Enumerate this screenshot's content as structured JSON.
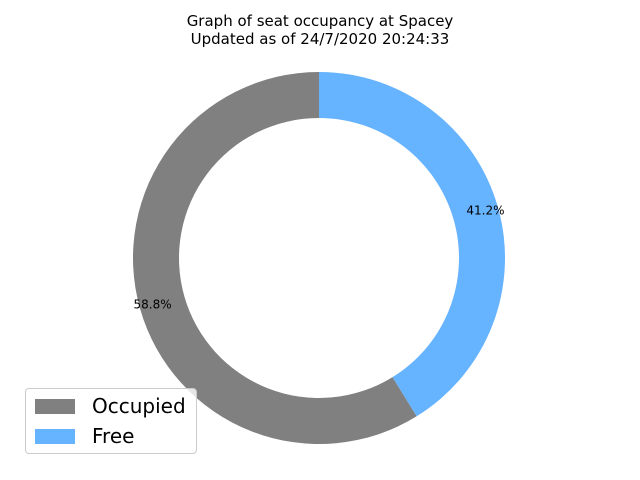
{
  "chart_data": {
    "type": "pie",
    "style": "donut",
    "title": "Graph of seat occupancy at Spacey\nUpdated as of 24/7/2020 20:24:33",
    "title_lines": [
      "Graph of seat occupancy at Spacey",
      "Updated as of 24/7/2020 20:24:33"
    ],
    "labels": [
      "Occupied",
      "Free"
    ],
    "values": [
      58.8,
      41.2
    ],
    "autopct_labels": [
      "58.8%",
      "41.2%"
    ],
    "colors": [
      "#808080",
      "#66b3ff"
    ],
    "start_angle_deg": 90,
    "direction": "counterclockwise",
    "legend": {
      "entries": [
        "Occupied",
        "Free"
      ],
      "placement": "lower-left"
    }
  }
}
